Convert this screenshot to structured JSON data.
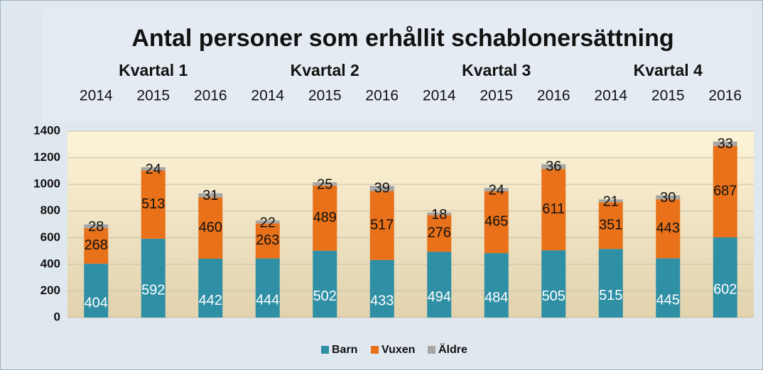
{
  "chart_data": {
    "type": "stacked_bar",
    "title": "Antal personer som erhållit schablonersättning",
    "groups": [
      "Kvartal 1",
      "Kvartal 2",
      "Kvartal 3",
      "Kvartal 4"
    ],
    "categories": [
      "2014",
      "2015",
      "2016",
      "2014",
      "2015",
      "2016",
      "2014",
      "2015",
      "2016",
      "2014",
      "2015",
      "2016"
    ],
    "series": [
      {
        "name": "Barn",
        "color": "#2f8fa5",
        "values": [
          404,
          592,
          442,
          444,
          502,
          433,
          494,
          484,
          505,
          515,
          445,
          602
        ]
      },
      {
        "name": "Vuxen",
        "color": "#e8711a",
        "values": [
          268,
          513,
          460,
          263,
          489,
          517,
          276,
          465,
          611,
          351,
          443,
          687
        ]
      },
      {
        "name": "Äldre",
        "color": "#a6a6a6",
        "values": [
          28,
          24,
          31,
          22,
          25,
          39,
          18,
          24,
          36,
          21,
          30,
          33
        ]
      }
    ],
    "ylim": [
      0,
      1400
    ],
    "yticks": [
      0,
      200,
      400,
      600,
      800,
      1000,
      1200,
      1400
    ],
    "grid": true,
    "legend": "bottom"
  }
}
